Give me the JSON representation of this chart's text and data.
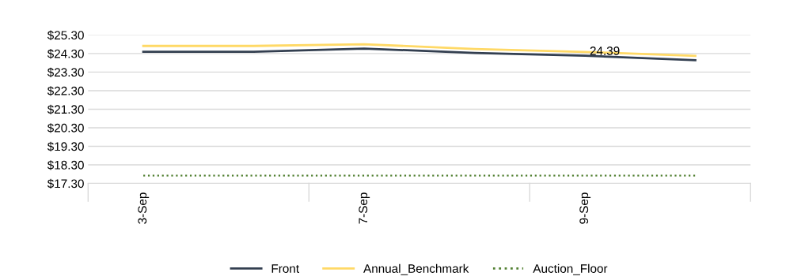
{
  "chart_data": {
    "type": "line",
    "categories": [
      "3-Sep",
      null,
      "7-Sep",
      null,
      "9-Sep",
      null
    ],
    "series": [
      {
        "name": "Front",
        "color": "#333f50",
        "values": [
          24.4,
          24.4,
          24.57,
          24.33,
          24.18,
          23.94
        ]
      },
      {
        "name": "Annual_Benchmark",
        "color": "#ffd966",
        "values": [
          24.71,
          24.71,
          24.8,
          24.55,
          24.39,
          24.18
        ],
        "value_labels": [
          null,
          null,
          null,
          null,
          "24.39",
          null
        ]
      },
      {
        "name": "Auction_Floor",
        "color": "#548235",
        "line_style": "dotted",
        "values": [
          17.72,
          17.72,
          17.72,
          17.72,
          17.72,
          17.72
        ]
      }
    ],
    "ylim": [
      17.3,
      25.3
    ],
    "yticks": [
      {
        "value": 17.3,
        "label": "$17.30"
      },
      {
        "value": 18.3,
        "label": "$18.30"
      },
      {
        "value": 19.3,
        "label": "$19.30"
      },
      {
        "value": 20.3,
        "label": "$20.30"
      },
      {
        "value": 21.3,
        "label": "$21.30"
      },
      {
        "value": 22.3,
        "label": "$22.30"
      },
      {
        "value": 23.3,
        "label": "$23.30"
      },
      {
        "value": 24.3,
        "label": "$24.30"
      },
      {
        "value": 25.3,
        "label": "$25.30"
      }
    ],
    "grid": "y",
    "legend": "bottom",
    "marker": "none",
    "line_style": "solid"
  }
}
